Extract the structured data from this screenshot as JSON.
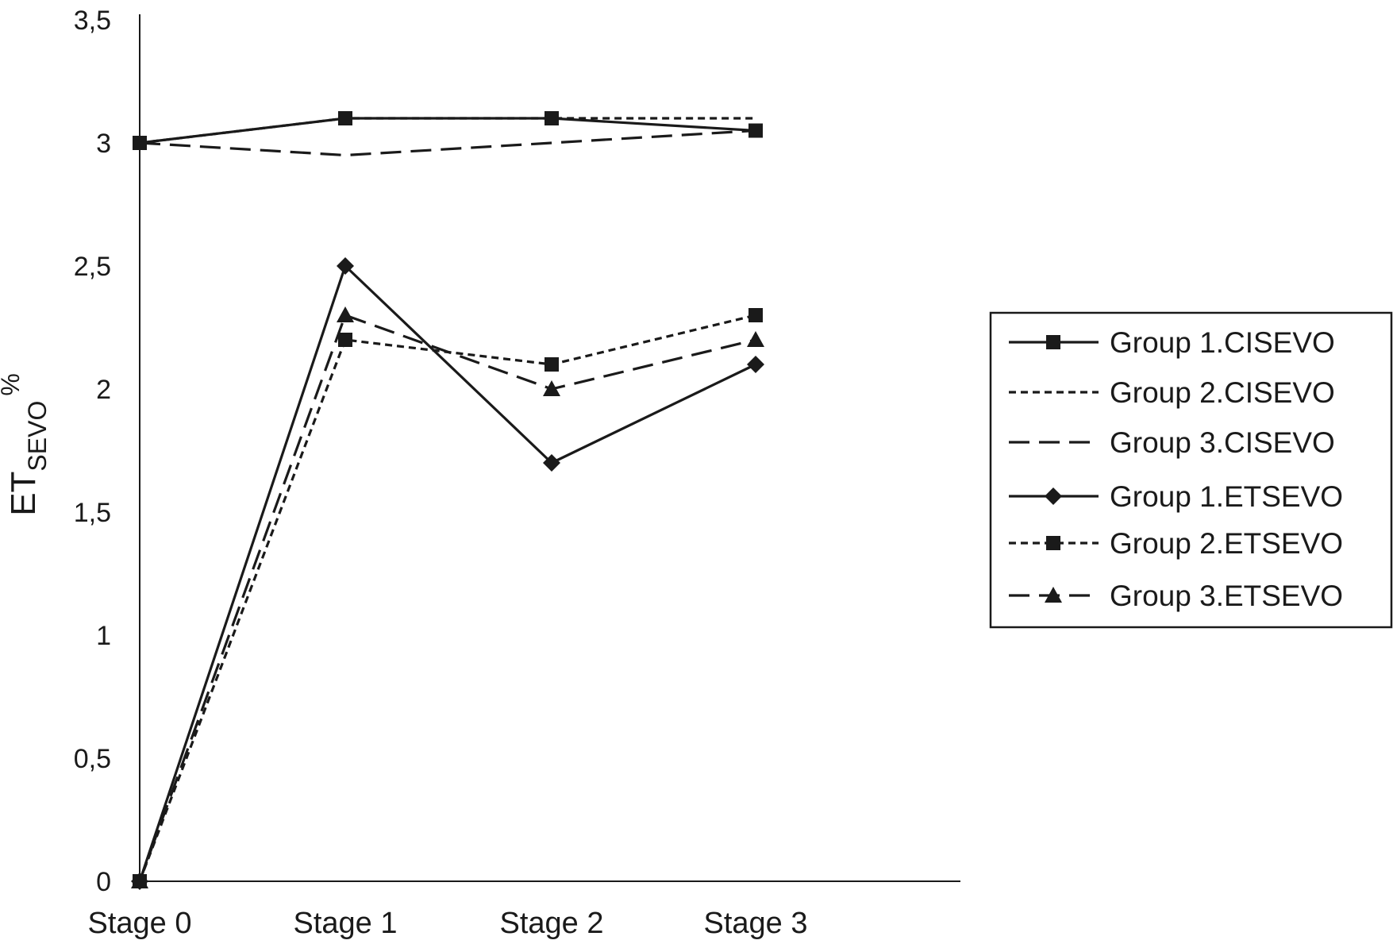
{
  "chart_data": {
    "type": "line",
    "categories": [
      "Stage 0",
      "Stage 1",
      "Stage 2",
      "Stage 3"
    ],
    "ylabel": {
      "main": "ET",
      "sub": "SEVO",
      "sup": "%"
    },
    "ylim": [
      0,
      3.5
    ],
    "yticks": [
      "0",
      "0,5",
      "1",
      "1,5",
      "2",
      "2,5",
      "3",
      "3,5"
    ],
    "ytick_values": [
      0,
      0.5,
      1,
      1.5,
      2,
      2.5,
      3,
      3.5
    ],
    "grid": false,
    "legend_position": "right",
    "series": [
      {
        "name": "Group 1.CISEVO",
        "values": [
          3.0,
          3.1,
          3.1,
          3.05
        ],
        "line": "solid",
        "marker": "square",
        "color": "#1a1a1a"
      },
      {
        "name": "Group 2.CISEVO",
        "values": [
          3.0,
          3.1,
          3.1,
          3.1
        ],
        "line": "dotted",
        "marker": "none",
        "color": "#1a1a1a"
      },
      {
        "name": "Group 3.CISEVO",
        "values": [
          3.0,
          2.95,
          3.0,
          3.05
        ],
        "line": "dashed",
        "marker": "none",
        "color": "#1a1a1a"
      },
      {
        "name": "Group 1.ETSEVO",
        "values": [
          0,
          2.5,
          1.7,
          2.1
        ],
        "line": "solid",
        "marker": "diamond",
        "color": "#1a1a1a"
      },
      {
        "name": "Group 2.ETSEVO",
        "values": [
          0,
          2.2,
          2.1,
          2.3
        ],
        "line": "dotted",
        "marker": "square",
        "color": "#1a1a1a"
      },
      {
        "name": "Group 3.ETSEVO",
        "values": [
          0,
          2.3,
          2.0,
          2.2
        ],
        "line": "dashed",
        "marker": "triangle",
        "color": "#1a1a1a"
      }
    ]
  }
}
